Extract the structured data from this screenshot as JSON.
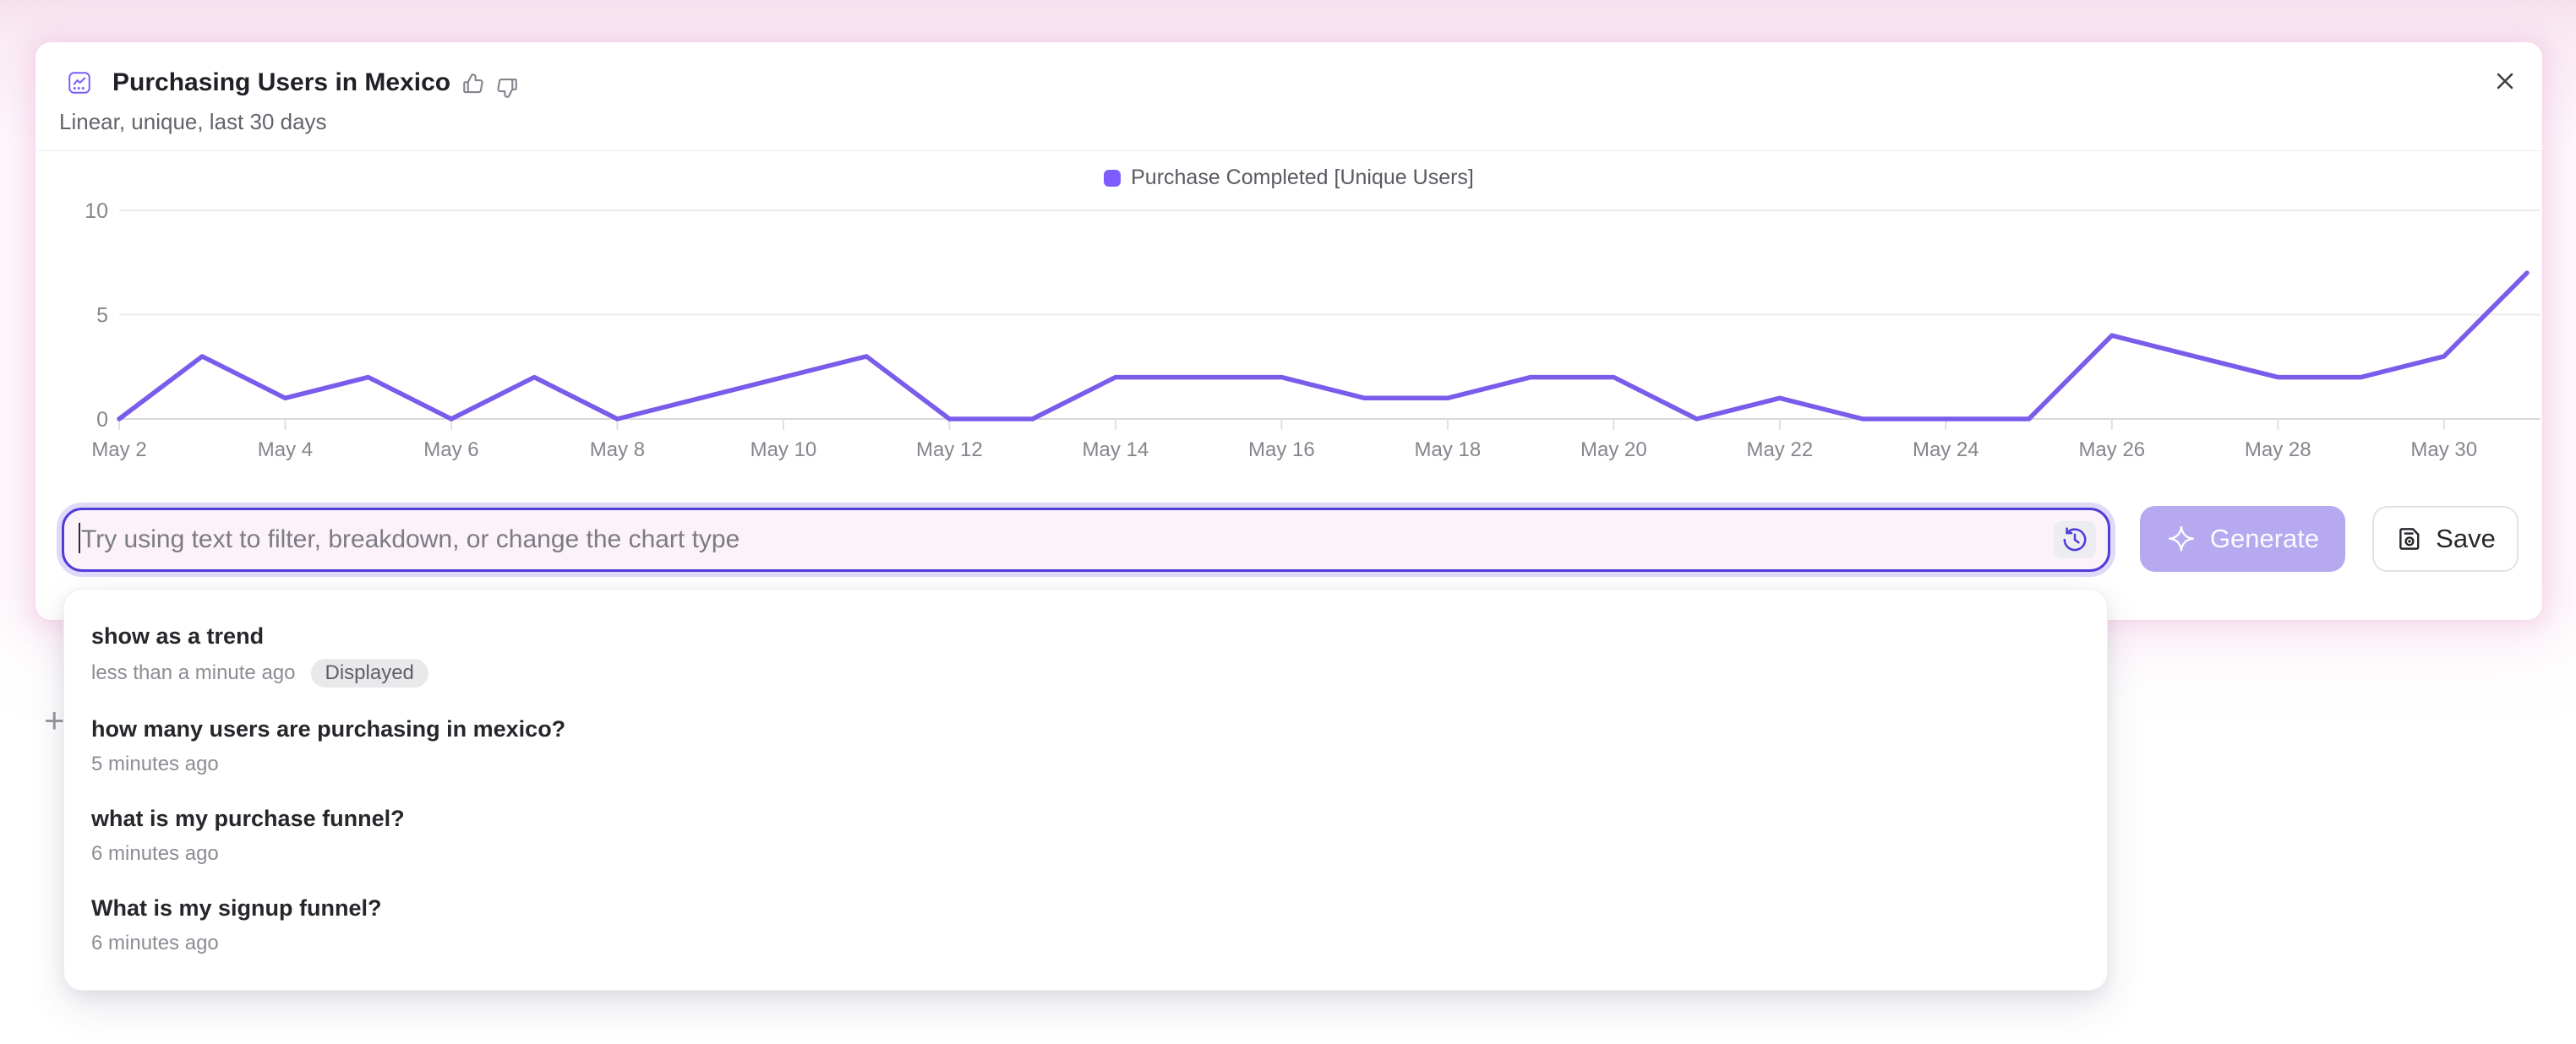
{
  "card": {
    "title": "Purchasing Users in Mexico",
    "subtitle": "Linear, unique, last 30 days"
  },
  "legend": {
    "label": "Purchase Completed [Unique Users]"
  },
  "chart_data": {
    "type": "line",
    "title": "Purchasing Users in Mexico",
    "categories": [
      "May 2",
      "May 3",
      "May 4",
      "May 5",
      "May 6",
      "May 7",
      "May 8",
      "May 9",
      "May 10",
      "May 11",
      "May 12",
      "May 13",
      "May 14",
      "May 15",
      "May 16",
      "May 17",
      "May 18",
      "May 19",
      "May 20",
      "May 21",
      "May 22",
      "May 23",
      "May 24",
      "May 25",
      "May 26",
      "May 27",
      "May 28",
      "May 29",
      "May 30",
      "May 31"
    ],
    "x_tick_step": 2,
    "series": [
      {
        "name": "Purchase Completed [Unique Users]",
        "color": "#7a5ceb",
        "values": [
          0,
          3,
          1,
          2,
          0,
          2,
          0,
          1,
          2,
          3,
          0,
          0,
          2,
          2,
          2,
          1,
          1,
          2,
          2,
          0,
          1,
          0,
          0,
          0,
          4,
          3,
          2,
          2,
          3,
          7
        ]
      }
    ],
    "ylim": [
      0,
      10
    ],
    "yticks": [
      0,
      5,
      10
    ],
    "grid": true,
    "legend_position": "top-center"
  },
  "prompt_input": {
    "placeholder": "Try using text to filter, breakdown, or change the chart type",
    "value": ""
  },
  "actions": {
    "generate": "Generate",
    "save": "Save"
  },
  "history": {
    "items": [
      {
        "query": "show as a trend",
        "time": "less than a minute ago",
        "badge": "Displayed"
      },
      {
        "query": "how many users are purchasing in mexico?",
        "time": "5 minutes ago",
        "badge": null
      },
      {
        "query": "what is my purchase funnel?",
        "time": "6 minutes ago",
        "badge": null
      },
      {
        "query": "What is my signup funnel?",
        "time": "6 minutes ago",
        "badge": null
      }
    ]
  },
  "artifacts": {
    "plus": "+"
  },
  "colors": {
    "line": "#7a5ceb",
    "legend_swatch": "#7c5cfc",
    "input_border": "#4f3cd9",
    "generate_bg": "#b6a9f0",
    "grid": "#ececf0",
    "axis_baseline": "#d7d7dc",
    "axis_text": "#85858d"
  }
}
